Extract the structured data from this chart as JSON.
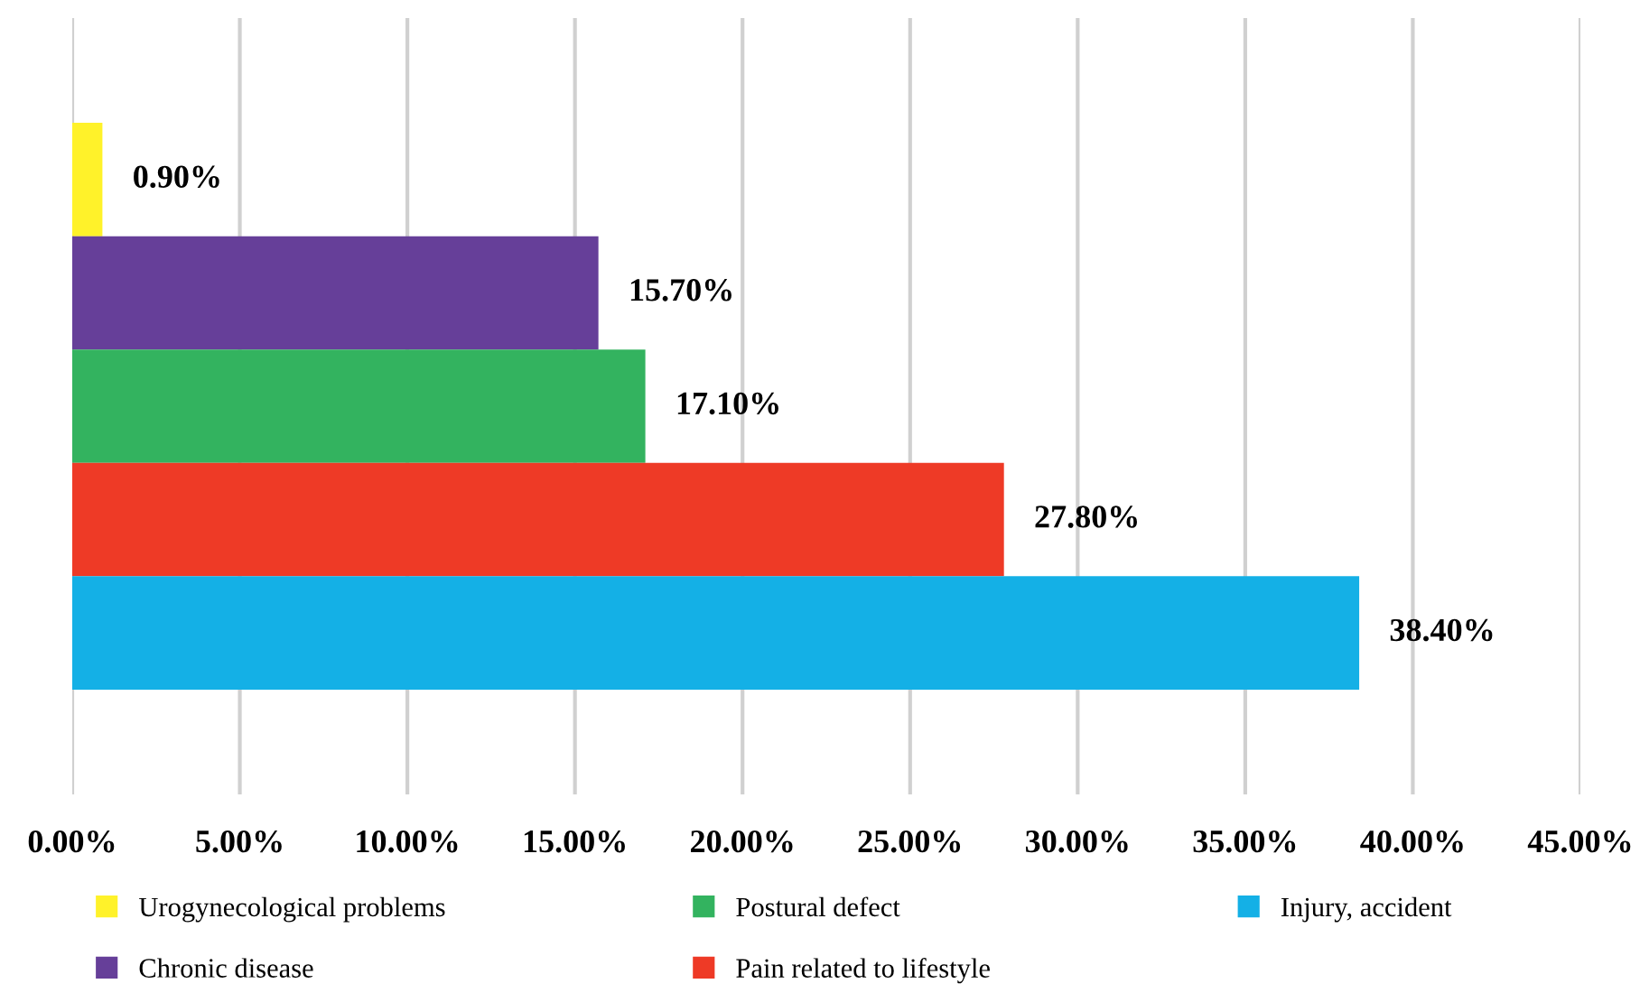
{
  "chart_data": {
    "type": "bar",
    "orientation": "horizontal",
    "categories": [
      null
    ],
    "series": [
      {
        "name": "Urogynecological problems",
        "color": "#fff22a",
        "values": [
          0.9
        ],
        "value_labels": [
          "0.90%"
        ]
      },
      {
        "name": "Chronic disease",
        "color": "#663f99",
        "values": [
          15.7
        ],
        "value_labels": [
          "15.70%"
        ]
      },
      {
        "name": "Postural defect",
        "color": "#33b35f",
        "values": [
          17.1
        ],
        "value_labels": [
          "17.10%"
        ]
      },
      {
        "name": "Pain related to lifestyle",
        "color": "#ee3a26",
        "values": [
          27.8
        ],
        "value_labels": [
          "27.80%"
        ]
      },
      {
        "name": "Injury, accident",
        "color": "#14b0e6",
        "values": [
          38.4
        ],
        "value_labels": [
          "38.40%"
        ]
      }
    ],
    "xlim": [
      0,
      45
    ],
    "xticks": [
      {
        "value": 0,
        "label": "0.00%"
      },
      {
        "value": 5,
        "label": "5.00%"
      },
      {
        "value": 10,
        "label": "10.00%"
      },
      {
        "value": 15,
        "label": "15.00%"
      },
      {
        "value": 20,
        "label": "20.00%"
      },
      {
        "value": 25,
        "label": "25.00%"
      },
      {
        "value": 30,
        "label": "30.00%"
      },
      {
        "value": 35,
        "label": "35.00%"
      },
      {
        "value": 40,
        "label": "40.00%"
      },
      {
        "value": 45,
        "label": "45.00%"
      }
    ],
    "grid": "x",
    "legend": "bottom"
  }
}
